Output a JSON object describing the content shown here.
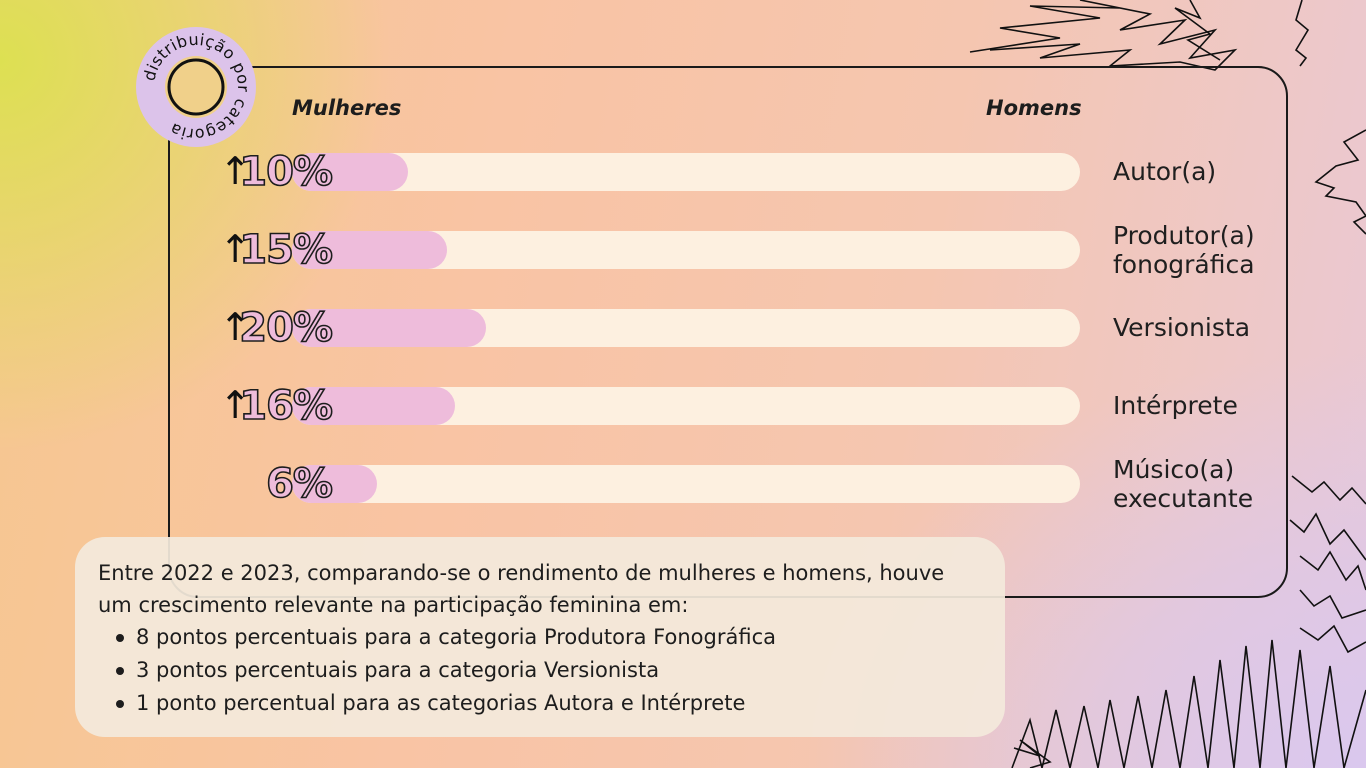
{
  "chart_data": {
    "type": "bar",
    "orientation": "horizontal",
    "left_label": "Mulheres",
    "right_label": "Homens",
    "categories": [
      [
        "Autor(a)"
      ],
      [
        "Produtor(a)",
        "fonográfica"
      ],
      [
        "Versionista"
      ],
      [
        "Intérprete"
      ],
      [
        "Músico(a)",
        "executante"
      ]
    ],
    "values": [
      10,
      15,
      20,
      16,
      6
    ],
    "value_labels": [
      "10%",
      "15%",
      "20%",
      "16%",
      "6%"
    ],
    "growth_up": [
      true,
      true,
      true,
      true,
      false
    ],
    "xlim": [
      0,
      100
    ],
    "grid": false,
    "colors": {
      "women": "#eebcdb",
      "track": "#fdf0e0"
    }
  },
  "badge": {
    "text": "distribuição por categoria"
  },
  "note": {
    "intro": "Entre 2022 e 2023, comparando-se o rendimento de mulheres e homens, houve um crescimento relevante na participação feminina em:",
    "items": [
      "8 pontos percentuais para a categoria Produtora Fonográfica",
      "3 pontos percentuais para a categoria Versionista",
      "1 ponto percentual para as categorias Autora e Intérprete"
    ]
  },
  "icons": {
    "growth": "up-arrow-icon"
  }
}
